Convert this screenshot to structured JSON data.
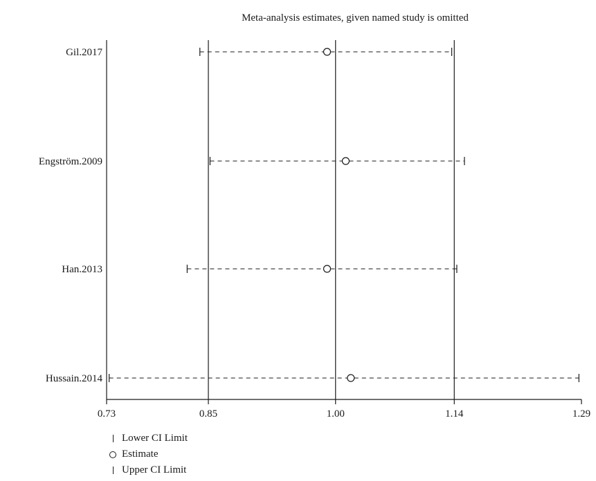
{
  "chart_data": {
    "type": "forest",
    "title": "Meta-analysis estimates, given named study is omitted",
    "xlabel": "",
    "ylabel": "",
    "xlim": [
      0.73,
      1.29
    ],
    "x_ticks": [
      0.73,
      0.85,
      1.0,
      1.14,
      1.29
    ],
    "x_tick_labels": [
      "0.73",
      "0.85",
      "1.00",
      "1.14",
      "1.29"
    ],
    "reference_lines": [
      0.85,
      1.0,
      1.14
    ],
    "studies": [
      {
        "name": "Gil.2017",
        "lower": 0.84,
        "estimate": 0.99,
        "upper": 1.137
      },
      {
        "name": "Engström.2009",
        "lower": 0.852,
        "estimate": 1.012,
        "upper": 1.152
      },
      {
        "name": "Han.2013",
        "lower": 0.825,
        "estimate": 0.99,
        "upper": 1.143
      },
      {
        "name": "Hussain.2014",
        "lower": 0.733,
        "estimate": 1.018,
        "upper": 1.287
      }
    ],
    "legend": {
      "position": "bottom-left",
      "lower": "Lower CI Limit",
      "estimate": "Estimate",
      "upper": "Upper CI Limit"
    }
  }
}
